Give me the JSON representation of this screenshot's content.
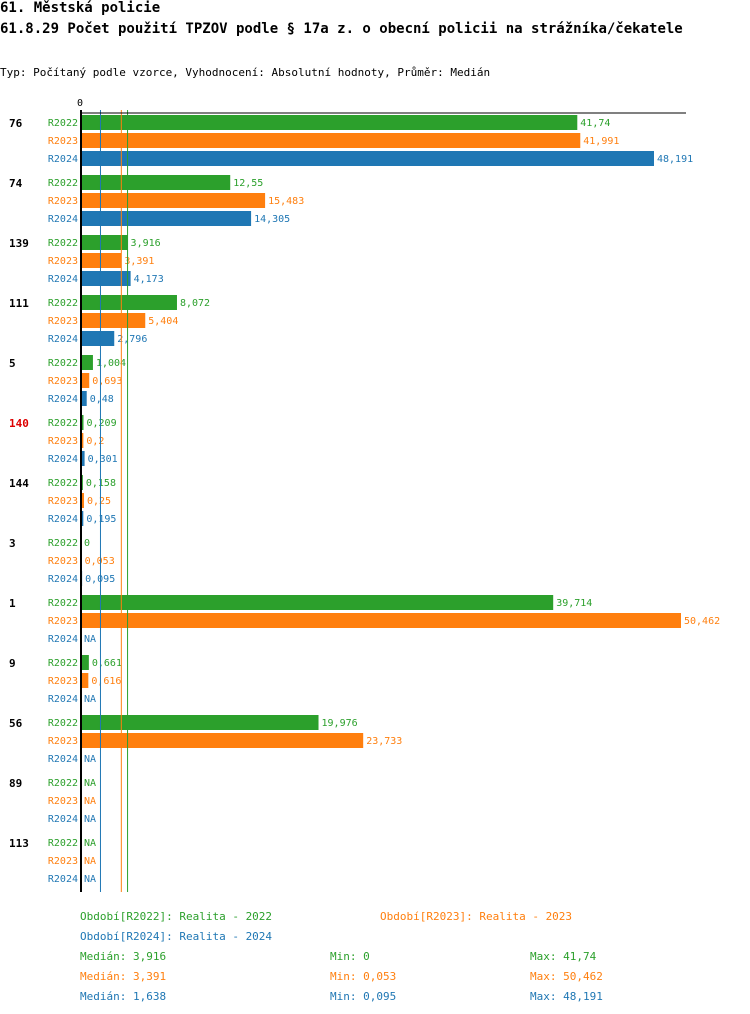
{
  "header": {
    "title": "61. Městská policie",
    "subtitle": "61.8.29 Počet použití TPZOV podle § 17a z. o obecní policii na strážníka/čekatele",
    "type_line": "Typ: Počítaný podle vzorce, Vyhodnocení: Absolutní hodnoty, Průměr: Medián"
  },
  "colors": {
    "R2022": "#2ca02c",
    "R2023": "#ff7f0e",
    "R2024": "#1f77b4",
    "highlight": "#dd0000",
    "axis": "#000000"
  },
  "chart_data": {
    "type": "bar",
    "orientation": "horizontal",
    "axis_zero_label": "0",
    "xlim": [
      0,
      50.462
    ],
    "series_names": [
      "R2022",
      "R2023",
      "R2024"
    ],
    "groups": [
      {
        "label": "76",
        "highlight": false,
        "values": [
          41.74,
          41.991,
          48.191
        ],
        "labels": [
          "41,74",
          "41,991",
          "48,191"
        ]
      },
      {
        "label": "74",
        "highlight": false,
        "values": [
          12.55,
          15.483,
          14.305
        ],
        "labels": [
          "12,55",
          "15,483",
          "14,305"
        ]
      },
      {
        "label": "139",
        "highlight": false,
        "values": [
          3.916,
          3.391,
          4.173
        ],
        "labels": [
          "3,916",
          "3,391",
          "4,173"
        ]
      },
      {
        "label": "111",
        "highlight": false,
        "values": [
          8.072,
          5.404,
          2.796
        ],
        "labels": [
          "8,072",
          "5,404",
          "2,796"
        ]
      },
      {
        "label": "5",
        "highlight": false,
        "values": [
          1.004,
          0.693,
          0.48
        ],
        "labels": [
          "1,004",
          "0,693",
          "0,48"
        ]
      },
      {
        "label": "140",
        "highlight": true,
        "values": [
          0.209,
          0.2,
          0.301
        ],
        "labels": [
          "0,209",
          "0,2",
          "0,301"
        ]
      },
      {
        "label": "144",
        "highlight": false,
        "values": [
          0.158,
          0.25,
          0.195
        ],
        "labels": [
          "0,158",
          "0,25",
          "0,195"
        ]
      },
      {
        "label": "3",
        "highlight": false,
        "values": [
          0,
          0.053,
          0.095
        ],
        "labels": [
          "0",
          "0,053",
          "0,095"
        ]
      },
      {
        "label": "1",
        "highlight": false,
        "values": [
          39.714,
          50.462,
          null
        ],
        "labels": [
          "39,714",
          "50,462",
          "NA"
        ]
      },
      {
        "label": "9",
        "highlight": false,
        "values": [
          0.661,
          0.616,
          null
        ],
        "labels": [
          "0,661",
          "0,616",
          "NA"
        ]
      },
      {
        "label": "56",
        "highlight": false,
        "values": [
          19.976,
          23.733,
          null
        ],
        "labels": [
          "19,976",
          "23,733",
          "NA"
        ]
      },
      {
        "label": "89",
        "highlight": false,
        "values": [
          null,
          null,
          null
        ],
        "labels": [
          "NA",
          "NA",
          "NA"
        ]
      },
      {
        "label": "113",
        "highlight": false,
        "values": [
          null,
          null,
          null
        ],
        "labels": [
          "NA",
          "NA",
          "NA"
        ]
      }
    ],
    "median_lines": [
      {
        "series": "R2022",
        "value": 3.916
      },
      {
        "series": "R2023",
        "value": 3.391
      },
      {
        "series": "R2024",
        "value": 1.638
      }
    ]
  },
  "legend": {
    "period_r2022": "Období[R2022]: Realita - 2022",
    "period_r2023": "Období[R2023]: Realita - 2023",
    "period_r2024": "Období[R2024]: Realita - 2024",
    "stats": [
      {
        "median": "Medián: 3,916",
        "min": "Min: 0",
        "max": "Max: 41,74"
      },
      {
        "median": "Medián: 3,391",
        "min": "Min: 0,053",
        "max": "Max: 50,462"
      },
      {
        "median": "Medián: 1,638",
        "min": "Min: 0,095",
        "max": "Max: 48,191"
      }
    ]
  }
}
